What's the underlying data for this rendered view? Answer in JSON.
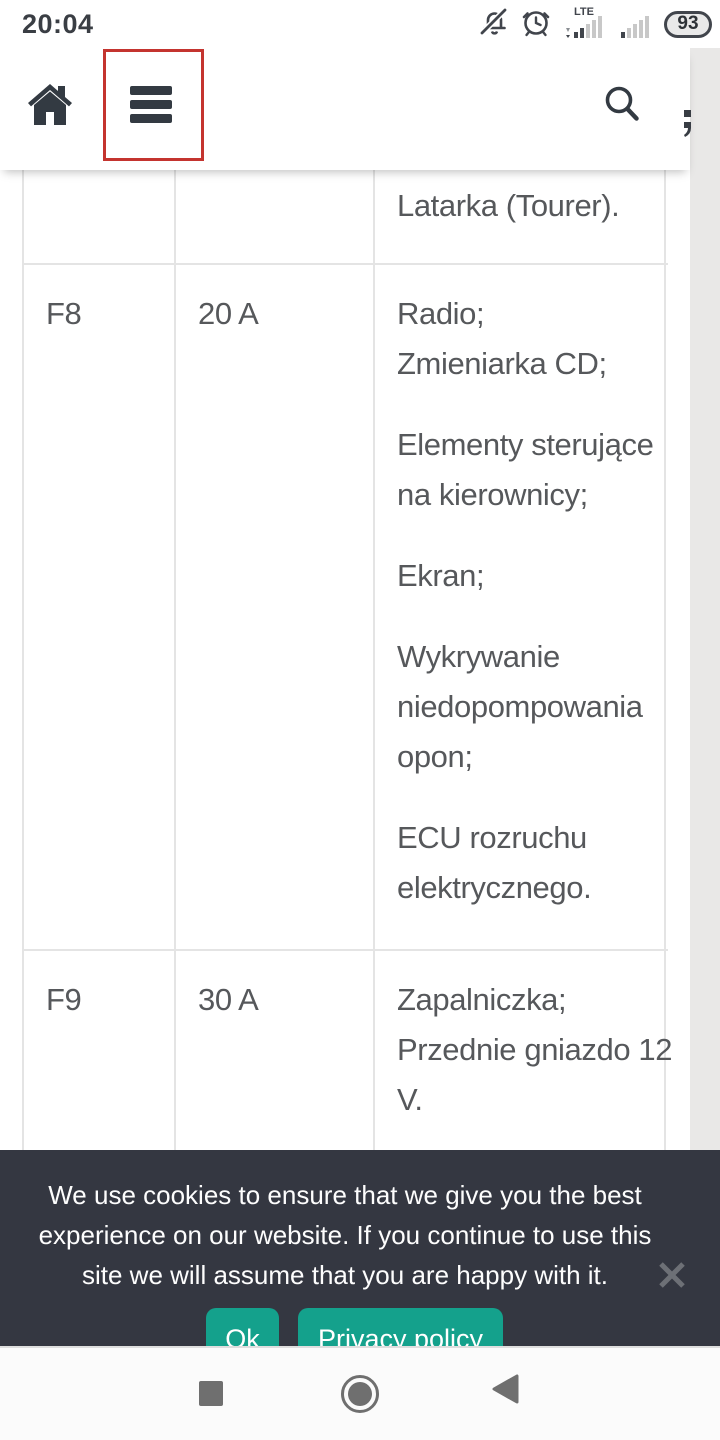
{
  "status_bar": {
    "time": "20:04",
    "network_label": "LTE",
    "battery_percent": "93",
    "icons": [
      "notifications-muted-icon",
      "alarm-icon",
      "signal-sim1-icon",
      "signal-sim2-icon",
      "battery-icon"
    ]
  },
  "header": {
    "icons": [
      "home-icon",
      "hamburger-menu-icon",
      "search-icon"
    ],
    "menu_highlight_color": "#c4342f"
  },
  "fuse_table": {
    "rows": [
      {
        "fuse": "",
        "amperage": "",
        "functions": [
          [
            "Latarka (Tourer)."
          ]
        ]
      },
      {
        "fuse": "F8",
        "amperage": "20 A",
        "functions": [
          [
            "Radio;",
            "Zmieniarka CD;"
          ],
          [
            "Elementy sterujące",
            "na kierownicy;"
          ],
          [
            "Ekran;"
          ],
          [
            "Wykrywanie",
            "niedopompowania",
            "opon;"
          ],
          [
            "ECU rozruchu",
            "elektrycznego."
          ]
        ]
      },
      {
        "fuse": "F9",
        "amperage": "30 A",
        "functions": [
          [
            "Zapalniczka;",
            "Przednie gniazdo 12",
            "V."
          ]
        ]
      }
    ]
  },
  "cookie_banner": {
    "message_lines": [
      "We use cookies to ensure that we give you the best",
      "experience on our website. If you continue to use this",
      "site we will assume that you are happy with it."
    ],
    "ok_button": "Ok",
    "privacy_button": "Privacy policy",
    "accent_color": "#14a18c",
    "background_color": "#343741"
  },
  "nav_bar": {
    "icons": [
      "recents-icon",
      "home-nav-icon",
      "back-icon"
    ]
  }
}
